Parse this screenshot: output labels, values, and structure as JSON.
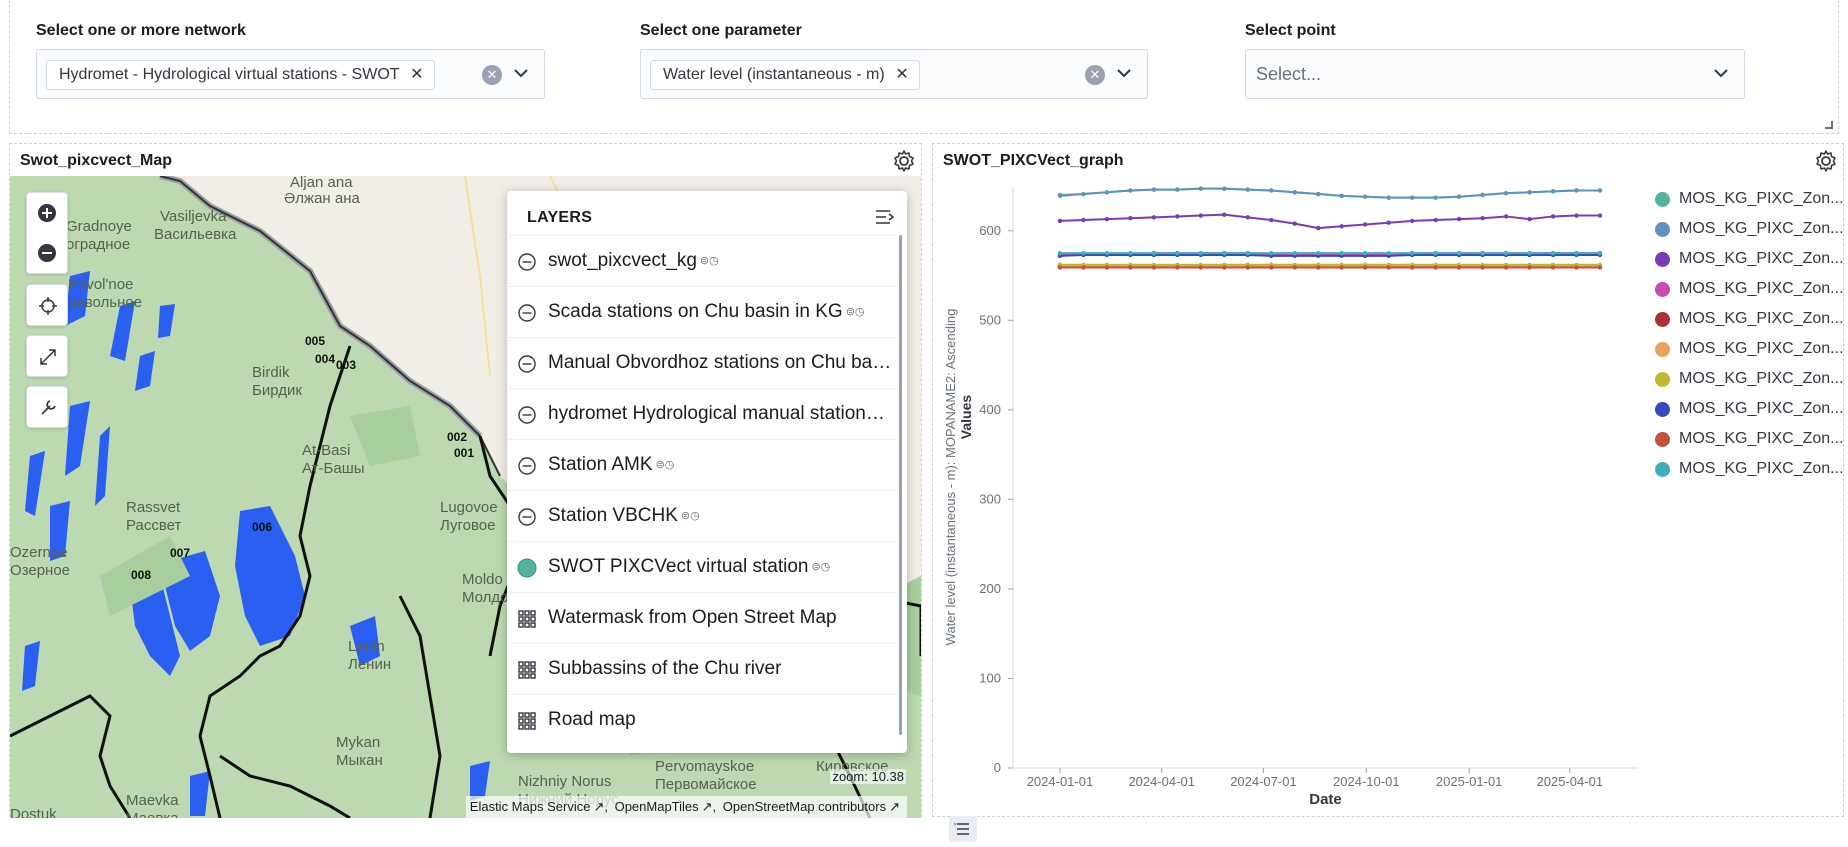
{
  "controls": {
    "network": {
      "label": "Select one or more network",
      "selected": "Hydromet - Hydrological virtual stations - SWOT"
    },
    "parameter": {
      "label": "Select one parameter",
      "selected": "Water level (instantaneous - m)"
    },
    "point": {
      "label": "Select point",
      "placeholder": "Select..."
    }
  },
  "map_panel": {
    "title": "Swot_pixcvect_Map",
    "place_labels": [
      "Aljan ana",
      "Əлжан ана",
      "Vasiljevka",
      "Васильевка",
      "Gradnoye",
      "оградное",
      "Privol'noe",
      "ривольное",
      "Birdik",
      "Бирдик",
      "At-Basi",
      "Ат-Башы",
      "Rassvet",
      "Рассвет",
      "Lugovoe",
      "Луговое",
      "Ozernoe",
      "Озерное",
      "Moldo",
      "Молдо",
      "Lenin",
      "Ленин",
      "Mykan",
      "Мыкан",
      "Nizhniy Norus",
      "Нижний Норус",
      "Pervomayskoe",
      "Первомайское",
      "Кировское",
      "Maevka",
      "Маевка",
      "Dostuk"
    ],
    "point_labels": [
      "005",
      "004",
      "003",
      "002",
      "001",
      "006",
      "007",
      "008"
    ],
    "layers": {
      "title": "LAYERS",
      "items": [
        {
          "name": "swot_pixcvect_kg",
          "type": "hidden",
          "meta": true
        },
        {
          "name": "Scada stations on Chu basin in KG",
          "type": "hidden",
          "meta": true
        },
        {
          "name": "Manual Obvordhoz stations on Chu basi...",
          "type": "hidden",
          "meta": false
        },
        {
          "name": "hydromet Hydrological manual stations ...",
          "type": "hidden",
          "meta": false
        },
        {
          "name": "Station AMK",
          "type": "hidden",
          "meta": true
        },
        {
          "name": "Station VBCHK",
          "type": "hidden",
          "meta": true
        },
        {
          "name": "SWOT PIXCVect virtual station",
          "type": "visible",
          "meta": true
        },
        {
          "name": "Watermask from Open Street Map",
          "type": "tile",
          "meta": false
        },
        {
          "name": "Subbassins of the Chu river",
          "type": "tile",
          "meta": false
        },
        {
          "name": "Road map",
          "type": "tile",
          "meta": false
        }
      ]
    },
    "zoom_text": "zoom: 10.38",
    "attribution": [
      "Elastic Maps Service",
      "OpenMapTiles",
      "OpenStreetMap contributors"
    ]
  },
  "graph_panel": {
    "title": "SWOT_PIXCVect_graph"
  },
  "chart_data": {
    "type": "line",
    "xlabel": "Date",
    "ylabel": "Water level (instantaneous - m): MOPANAME2: Ascending",
    "ylabel2": "Values",
    "ylim": [
      0,
      650
    ],
    "yticks": [
      0,
      100,
      200,
      300,
      400,
      500,
      600
    ],
    "xticks": [
      "2024-01-01",
      "2024-04-01",
      "2024-07-01",
      "2024-10-01",
      "2025-01-01",
      "2025-04-01"
    ],
    "x": [
      "2024-01-01",
      "2024-01-22",
      "2024-02-12",
      "2024-03-04",
      "2024-03-25",
      "2024-04-15",
      "2024-05-06",
      "2024-05-27",
      "2024-06-17",
      "2024-07-08",
      "2024-07-29",
      "2024-08-19",
      "2024-09-09",
      "2024-09-30",
      "2024-10-21",
      "2024-11-11",
      "2024-12-02",
      "2024-12-23",
      "2025-01-13",
      "2025-02-03",
      "2025-02-24",
      "2025-03-17",
      "2025-04-07",
      "2025-04-28"
    ],
    "legend_position": "right",
    "series": [
      {
        "name": "MOS_KG_PIXC_Zon...",
        "color": "#54b399",
        "values": [
          640,
          641,
          643,
          645,
          646,
          646,
          647,
          647,
          646,
          645,
          643,
          641,
          639,
          638,
          637,
          637,
          637,
          638,
          640,
          642,
          643,
          644,
          645,
          645
        ]
      },
      {
        "name": "MOS_KG_PIXC_Zon...",
        "color": "#6092c0",
        "values": [
          639,
          641,
          643,
          645,
          646,
          646,
          647,
          647,
          646,
          645,
          643,
          641,
          639,
          638,
          637,
          637,
          637,
          638,
          640,
          642,
          643,
          644,
          645,
          645
        ]
      },
      {
        "name": "MOS_KG_PIXC_Zon...",
        "color": "#7b3bb4",
        "values": [
          611,
          612,
          613,
          614,
          615,
          616,
          617,
          618,
          615,
          612,
          608,
          603,
          605,
          607,
          609,
          611,
          612,
          613,
          614,
          616,
          613,
          616,
          617,
          617
        ]
      },
      {
        "name": "MOS_KG_PIXC_Zon...",
        "color": "#ca4caf",
        "values": [
          574,
          574,
          574,
          574,
          575,
          575,
          575,
          575,
          575,
          574,
          574,
          574,
          574,
          574,
          574,
          575,
          575,
          575,
          575,
          575,
          575,
          575,
          575,
          575
        ]
      },
      {
        "name": "MOS_KG_PIXC_Zon...",
        "color": "#aa3232",
        "values": [
          560,
          560,
          561,
          561,
          561,
          561,
          561,
          561,
          560,
          560,
          560,
          560,
          560,
          560,
          560,
          561,
          561,
          561,
          561,
          561,
          561,
          561,
          561,
          561
        ]
      },
      {
        "name": "MOS_KG_PIXC_Zon...",
        "color": "#e7a35c",
        "values": [
          561,
          561,
          561,
          561,
          561,
          561,
          561,
          561,
          561,
          561,
          560,
          560,
          560,
          560,
          561,
          561,
          561,
          561,
          561,
          561,
          561,
          561,
          561,
          561
        ]
      },
      {
        "name": "MOS_KG_PIXC_Zon...",
        "color": "#c1b730",
        "values": [
          562,
          562,
          562,
          562,
          562,
          562,
          562,
          562,
          562,
          562,
          562,
          562,
          562,
          562,
          562,
          562,
          562,
          562,
          562,
          562,
          562,
          562,
          562,
          562
        ]
      },
      {
        "name": "MOS_KG_PIXC_Zon...",
        "color": "#3848c0",
        "values": [
          572,
          573,
          573,
          573,
          573,
          573,
          573,
          573,
          573,
          572,
          572,
          572,
          572,
          572,
          572,
          573,
          573,
          573,
          573,
          573,
          573,
          573,
          573,
          573
        ]
      },
      {
        "name": "MOS_KG_PIXC_Zon...",
        "color": "#c7503c",
        "values": [
          559,
          559,
          559,
          559,
          559,
          559,
          559,
          559,
          559,
          559,
          559,
          559,
          559,
          559,
          559,
          559,
          559,
          559,
          559,
          559,
          559,
          559,
          559,
          559
        ]
      },
      {
        "name": "MOS_KG_PIXC_Zon...",
        "color": "#3fb0b8",
        "values": [
          575,
          575,
          575,
          575,
          575,
          575,
          575,
          575,
          575,
          575,
          575,
          575,
          575,
          575,
          575,
          575,
          575,
          575,
          575,
          575,
          575,
          575,
          575,
          575
        ]
      }
    ]
  }
}
